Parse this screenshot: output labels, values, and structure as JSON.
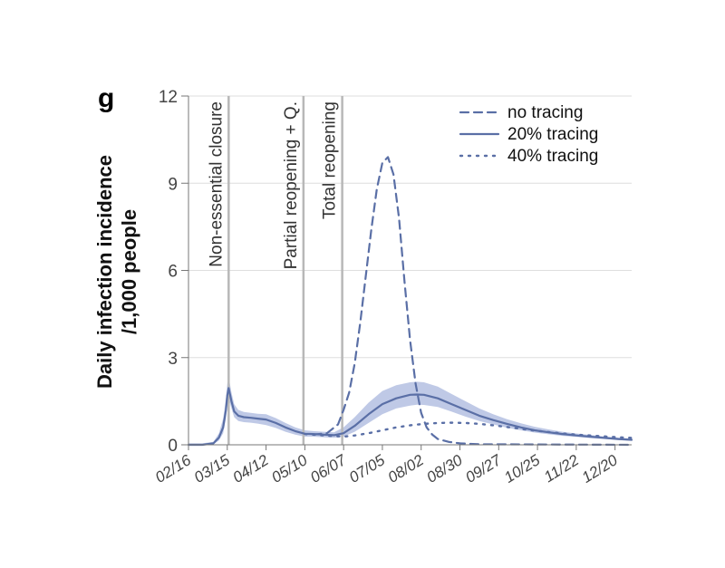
{
  "panel_label": "g",
  "chart_data": {
    "type": "line",
    "ylabel_lines": [
      "Daily infection incidence",
      "/1,000 people"
    ],
    "ylim": [
      0,
      12
    ],
    "yticks": [
      0,
      3,
      6,
      9,
      12
    ],
    "x_range": [
      0,
      320
    ],
    "x_ticks": [
      {
        "day": 0,
        "label": "02/16"
      },
      {
        "day": 28,
        "label": "03/15"
      },
      {
        "day": 56,
        "label": "04/12"
      },
      {
        "day": 84,
        "label": "05/10"
      },
      {
        "day": 112,
        "label": "06/07"
      },
      {
        "day": 140,
        "label": "07/05"
      },
      {
        "day": 168,
        "label": "08/02"
      },
      {
        "day": 196,
        "label": "08/30"
      },
      {
        "day": 224,
        "label": "09/27"
      },
      {
        "day": 252,
        "label": "10/25"
      },
      {
        "day": 280,
        "label": "11/22"
      },
      {
        "day": 308,
        "label": "12/20"
      }
    ],
    "grid": "horizontal",
    "legend_position": "top-right",
    "events": [
      {
        "day": 29,
        "label": "Non-essential closure"
      },
      {
        "day": 83,
        "label": "Partial reopening + Q."
      },
      {
        "day": 111,
        "label": "Total reopening"
      }
    ],
    "series": [
      {
        "name": "no tracing",
        "style": "dashed",
        "x": [
          90,
          100,
          108,
          112,
          116,
          120,
          124,
          128,
          132,
          136,
          140,
          144,
          148,
          152,
          156,
          160,
          164,
          168,
          172,
          176,
          180,
          188,
          196,
          210,
          320
        ],
        "y": [
          0.35,
          0.4,
          0.7,
          1.2,
          1.8,
          2.8,
          4.2,
          5.8,
          7.4,
          8.8,
          9.7,
          9.9,
          9.3,
          7.8,
          5.6,
          3.6,
          2.1,
          1.1,
          0.6,
          0.35,
          0.2,
          0.1,
          0.05,
          0.02,
          0.0
        ]
      },
      {
        "name": "20% tracing",
        "style": "solid",
        "x": [
          0,
          10,
          18,
          22,
          25,
          27,
          28,
          29,
          31,
          33,
          36,
          40,
          45,
          50,
          56,
          63,
          70,
          77,
          84,
          90,
          98,
          105,
          112,
          120,
          130,
          140,
          150,
          160,
          165,
          170,
          180,
          190,
          200,
          210,
          220,
          230,
          240,
          250,
          260,
          270,
          280,
          290,
          300,
          310,
          320
        ],
        "y": [
          0.0,
          0.0,
          0.05,
          0.25,
          0.6,
          1.2,
          1.7,
          1.95,
          1.5,
          1.15,
          1.0,
          0.95,
          0.93,
          0.9,
          0.87,
          0.75,
          0.6,
          0.47,
          0.38,
          0.37,
          0.35,
          0.33,
          0.4,
          0.65,
          1.05,
          1.4,
          1.6,
          1.72,
          1.73,
          1.72,
          1.6,
          1.4,
          1.2,
          1.0,
          0.85,
          0.72,
          0.6,
          0.5,
          0.43,
          0.37,
          0.32,
          0.28,
          0.24,
          0.2,
          0.17
        ]
      },
      {
        "name": "40% tracing",
        "style": "dotted",
        "x": [
          84,
          95,
          105,
          112,
          120,
          130,
          140,
          150,
          160,
          170,
          180,
          190,
          200,
          210,
          220,
          230,
          240,
          250,
          260,
          270,
          280,
          290,
          300,
          310,
          320
        ],
        "y": [
          0.37,
          0.33,
          0.3,
          0.28,
          0.32,
          0.4,
          0.5,
          0.6,
          0.67,
          0.72,
          0.75,
          0.76,
          0.75,
          0.72,
          0.67,
          0.61,
          0.55,
          0.49,
          0.44,
          0.39,
          0.35,
          0.32,
          0.29,
          0.26,
          0.24
        ]
      }
    ],
    "band": {
      "of": "20% tracing",
      "x": [
        0,
        10,
        18,
        22,
        25,
        27,
        28,
        29,
        31,
        33,
        36,
        40,
        45,
        50,
        56,
        63,
        70,
        77,
        84,
        90,
        98,
        105,
        112,
        120,
        130,
        140,
        150,
        160,
        165,
        170,
        180,
        190,
        200,
        210,
        220,
        230,
        240,
        250,
        260,
        270,
        280,
        290,
        300,
        310,
        320
      ],
      "lower": [
        0.0,
        0.0,
        0.02,
        0.15,
        0.4,
        0.9,
        1.35,
        1.6,
        1.25,
        0.95,
        0.82,
        0.78,
        0.76,
        0.73,
        0.68,
        0.58,
        0.45,
        0.35,
        0.28,
        0.28,
        0.26,
        0.24,
        0.28,
        0.45,
        0.75,
        1.05,
        1.25,
        1.35,
        1.38,
        1.37,
        1.3,
        1.14,
        0.97,
        0.82,
        0.7,
        0.59,
        0.5,
        0.42,
        0.36,
        0.31,
        0.27,
        0.23,
        0.2,
        0.17,
        0.14
      ],
      "upper": [
        0.05,
        0.05,
        0.1,
        0.4,
        0.9,
        1.6,
        2.1,
        2.35,
        1.8,
        1.4,
        1.2,
        1.13,
        1.1,
        1.07,
        1.05,
        0.92,
        0.75,
        0.6,
        0.5,
        0.47,
        0.45,
        0.43,
        0.6,
        0.95,
        1.45,
        1.85,
        2.05,
        2.15,
        2.17,
        2.15,
        2.0,
        1.75,
        1.5,
        1.25,
        1.05,
        0.88,
        0.74,
        0.62,
        0.53,
        0.45,
        0.39,
        0.34,
        0.29,
        0.25,
        0.21
      ]
    },
    "colors": {
      "line": "#5a6fa6",
      "band": "#b4c0e2",
      "event_line": "#b8b8b8",
      "grid": "#dedede"
    }
  }
}
